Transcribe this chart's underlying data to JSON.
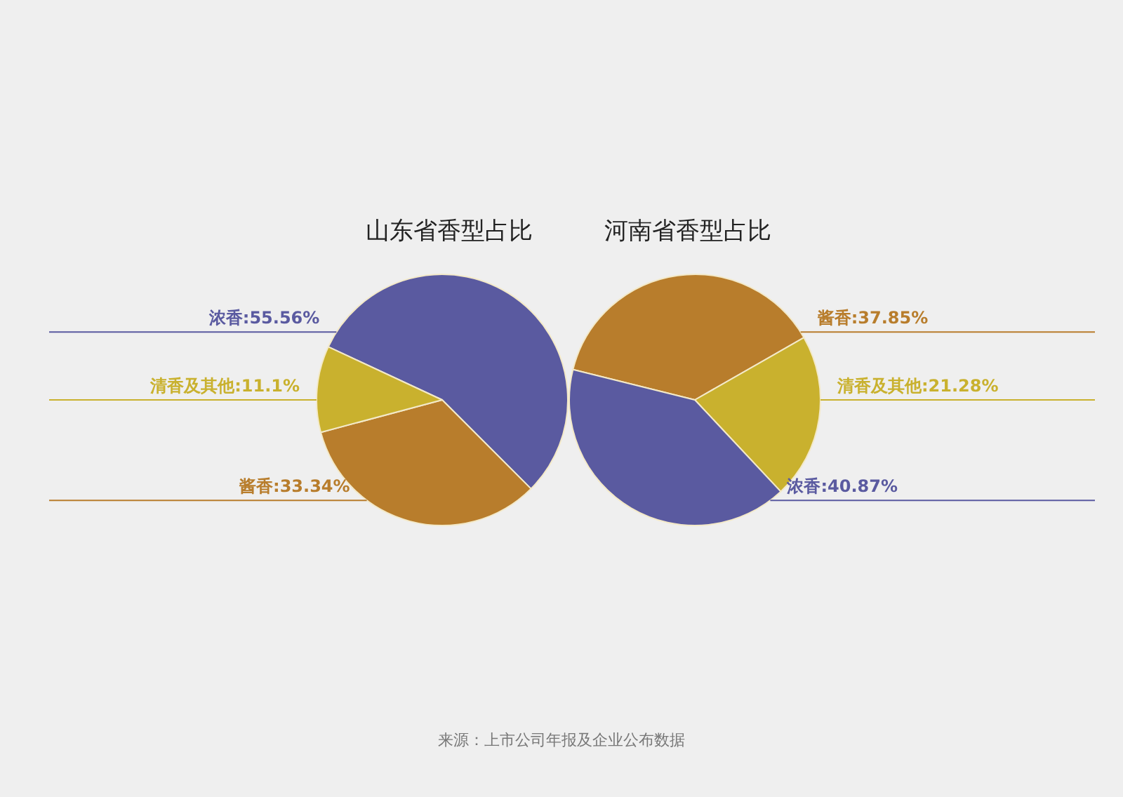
{
  "chart_data": [
    {
      "type": "pie",
      "title": "山东省香型占比",
      "categories": [
        "浓香",
        "酱香",
        "清香及其他"
      ],
      "values": [
        55.56,
        33.34,
        11.1
      ],
      "colors": [
        "#5a5aa0",
        "#b87d2c",
        "#c9b12e"
      ],
      "value_labels": [
        ":55.56%",
        ":33.34%",
        ":11.1%"
      ],
      "legend": false
    },
    {
      "type": "pie",
      "title": "河南省香型占比",
      "categories": [
        "酱香",
        "清香及其他",
        "浓香"
      ],
      "values": [
        37.85,
        21.28,
        40.87
      ],
      "colors": [
        "#b87d2c",
        "#c9b12e",
        "#5a5aa0"
      ],
      "value_labels": [
        ":37.85%",
        ":21.28%",
        ":40.87%"
      ],
      "legend": false,
      "annotations": [
        "来源：上市公司年报及企业公布数据"
      ]
    }
  ]
}
